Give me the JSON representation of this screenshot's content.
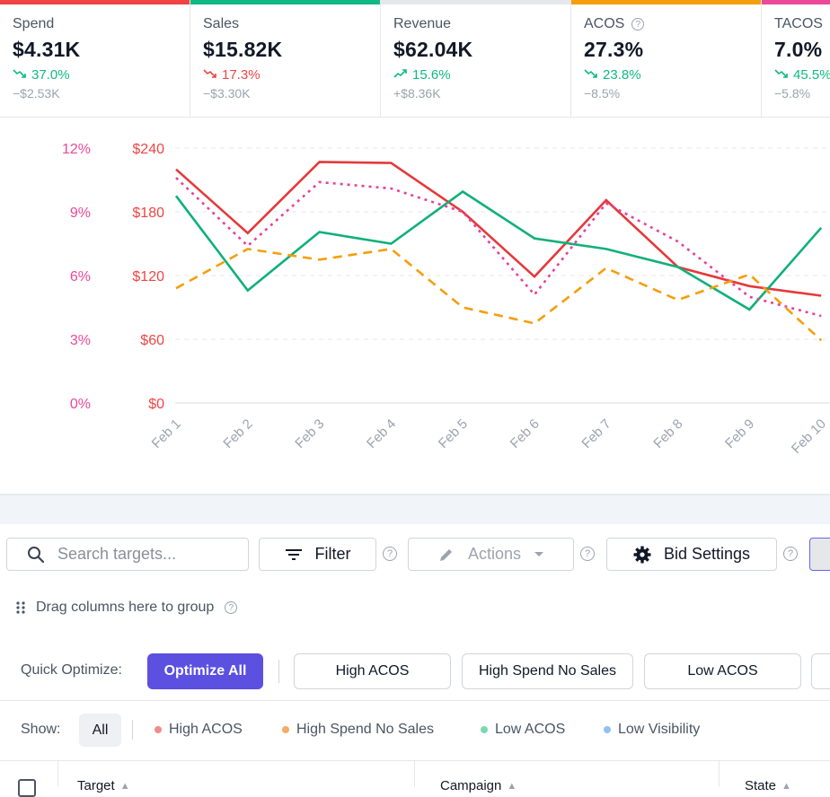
{
  "metrics": [
    {
      "label": "Spend",
      "value": "$4.31K",
      "change": "37.0%",
      "change_direction": "down",
      "change_color": "#10b981",
      "delta": "−$2.53K",
      "accent": "#ef4444",
      "has_help": false
    },
    {
      "label": "Sales",
      "value": "$15.82K",
      "change": "17.3%",
      "change_direction": "down",
      "change_color": "#ef4444",
      "delta": "−$3.30K",
      "accent": "#10b981",
      "has_help": false
    },
    {
      "label": "Revenue",
      "value": "$62.04K",
      "change": "15.6%",
      "change_direction": "up",
      "change_color": "#10b981",
      "delta": "+$8.36K",
      "accent": "#e5e7eb",
      "has_help": false
    },
    {
      "label": "ACOS",
      "value": "27.3%",
      "change": "23.8%",
      "change_direction": "down",
      "change_color": "#10b981",
      "delta": "−8.5%",
      "accent": "#f59e0b",
      "has_help": true
    },
    {
      "label": "TACOS",
      "value": "7.0%",
      "change": "45.5%",
      "change_direction": "down",
      "change_color": "#10b981",
      "delta": "−5.8%",
      "accent": "#ec4899",
      "has_help": false
    }
  ],
  "chart_data": {
    "type": "line",
    "title": "",
    "xlabel": "",
    "ylabel": "",
    "categories": [
      "Feb 1",
      "Feb 2",
      "Feb 3",
      "Feb 4",
      "Feb 5",
      "Feb 6",
      "Feb 7",
      "Feb 8",
      "Feb 9",
      "Feb 10"
    ],
    "y_left": {
      "ticks": [
        "$0",
        "$60",
        "$120",
        "$180",
        "$240"
      ],
      "range": [
        0,
        240
      ],
      "color": "#ef4444"
    },
    "y_right_percent": {
      "ticks": [
        "0%",
        "3%",
        "6%",
        "9%",
        "12%"
      ],
      "range": [
        0,
        12
      ],
      "color": "#ec4899"
    },
    "grid": true,
    "series": [
      {
        "name": "Spend",
        "axis": "dollar",
        "style": "solid",
        "color": "#e5393b",
        "values": [
          220,
          160,
          227,
          226,
          180,
          119,
          191,
          128,
          110,
          101
        ]
      },
      {
        "name": "Sales",
        "axis": "dollar",
        "style": "solid",
        "color": "#10b07a",
        "values": [
          195,
          106,
          161,
          150,
          199,
          155,
          145,
          128,
          88,
          165
        ]
      },
      {
        "name": "TACOS",
        "axis": "percent",
        "style": "dotted",
        "color": "#e8409a",
        "values": [
          10.6,
          7.4,
          10.4,
          10.1,
          9.0,
          5.1,
          9.4,
          7.6,
          5.0,
          4.1
        ]
      },
      {
        "name": "ACOS",
        "axis": "dollar",
        "style": "dashed",
        "color": "#f59e0b",
        "values": [
          108,
          145,
          135,
          145,
          90,
          75,
          127,
          97,
          121,
          59
        ]
      }
    ]
  },
  "toolbar": {
    "search_placeholder": "Search targets...",
    "filter_label": "Filter",
    "actions_label": "Actions",
    "bid_settings_label": "Bid Settings",
    "help_glyph": "?"
  },
  "group_zone": {
    "label": "Drag columns here to group"
  },
  "quick_optimize": {
    "label": "Quick Optimize:",
    "buttons": [
      "Optimize All",
      "High ACOS",
      "High Spend No Sales",
      "Low ACOS"
    ]
  },
  "show_filter": {
    "label": "Show:",
    "all_label": "All",
    "items": [
      {
        "label": "High ACOS",
        "color": "#f28b8b"
      },
      {
        "label": "High Spend No Sales",
        "color": "#f5a96b"
      },
      {
        "label": "Low ACOS",
        "color": "#7dd8b0"
      },
      {
        "label": "Low Visibility",
        "color": "#93c0f2"
      }
    ]
  },
  "table": {
    "columns": [
      "Target",
      "Campaign",
      "State"
    ],
    "sort_glyph": "▲"
  }
}
